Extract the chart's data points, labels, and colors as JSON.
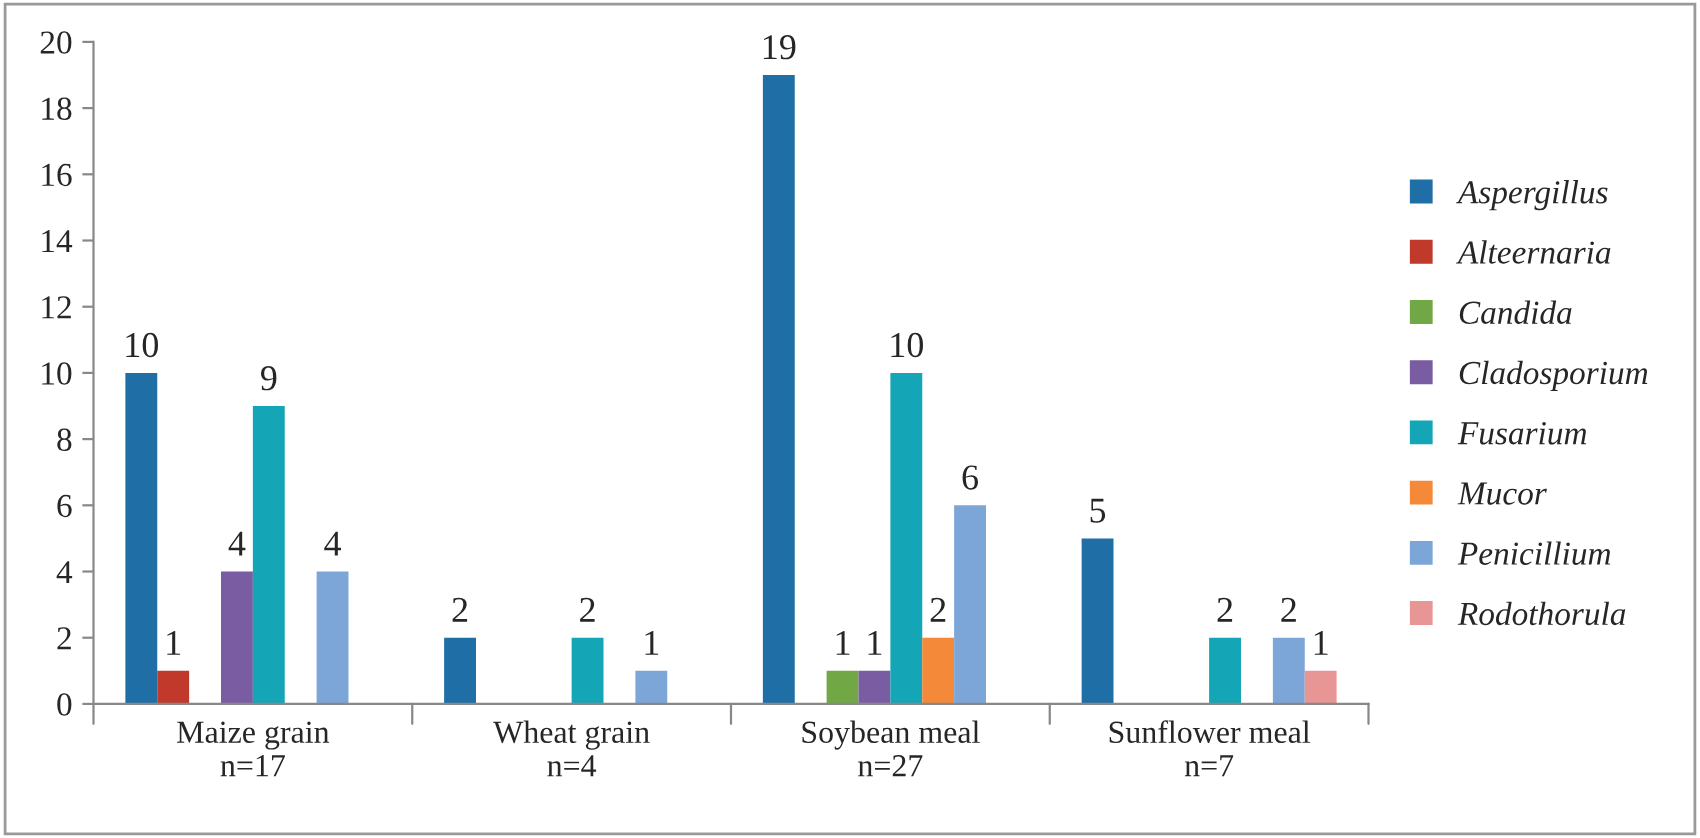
{
  "chart_data": {
    "type": "bar",
    "categories": [
      "Maize grain\nn=17",
      "Wheat grain\nn=4",
      "Soybean meal\nn=27",
      "Sunflower meal\nn=7"
    ],
    "series": [
      {
        "name": "Aspergillus",
        "color": "#1f6fa6",
        "values": [
          10,
          2,
          19,
          5
        ],
        "value_labels": [
          "10",
          "2",
          "19",
          "5"
        ]
      },
      {
        "name": "Alteernaria",
        "color": "#c0392b",
        "values": [
          1,
          0,
          0,
          0
        ],
        "value_labels": [
          "1",
          null,
          null,
          null
        ]
      },
      {
        "name": "Candida",
        "color": "#71a845",
        "values": [
          0,
          0,
          1,
          0
        ],
        "value_labels": [
          null,
          null,
          "1",
          null
        ]
      },
      {
        "name": "Cladosporium",
        "color": "#7a5ca3",
        "values": [
          4,
          0,
          1,
          0
        ],
        "value_labels": [
          "4",
          null,
          "1",
          null
        ]
      },
      {
        "name": "Fusarium",
        "color": "#14a6b6",
        "values": [
          9,
          2,
          10,
          2
        ],
        "value_labels": [
          "9",
          "2",
          "10",
          "2"
        ]
      },
      {
        "name": "Mucor",
        "color": "#f5893a",
        "values": [
          0,
          0,
          2,
          0
        ],
        "value_labels": [
          null,
          null,
          "2",
          null
        ]
      },
      {
        "name": "Penicillium",
        "color": "#7ca6d8",
        "values": [
          4,
          1,
          6,
          2
        ],
        "value_labels": [
          "4",
          "1",
          "6",
          "2"
        ]
      },
      {
        "name": "Rodothorula",
        "color": "#e89596",
        "values": [
          0,
          0,
          0,
          1
        ],
        "value_labels": [
          null,
          null,
          null,
          "1"
        ]
      }
    ],
    "ylim": [
      0,
      20
    ],
    "yticks": [
      0,
      2,
      4,
      6,
      8,
      10,
      12,
      14,
      16,
      18,
      20
    ],
    "grid": false,
    "legend": "right"
  }
}
